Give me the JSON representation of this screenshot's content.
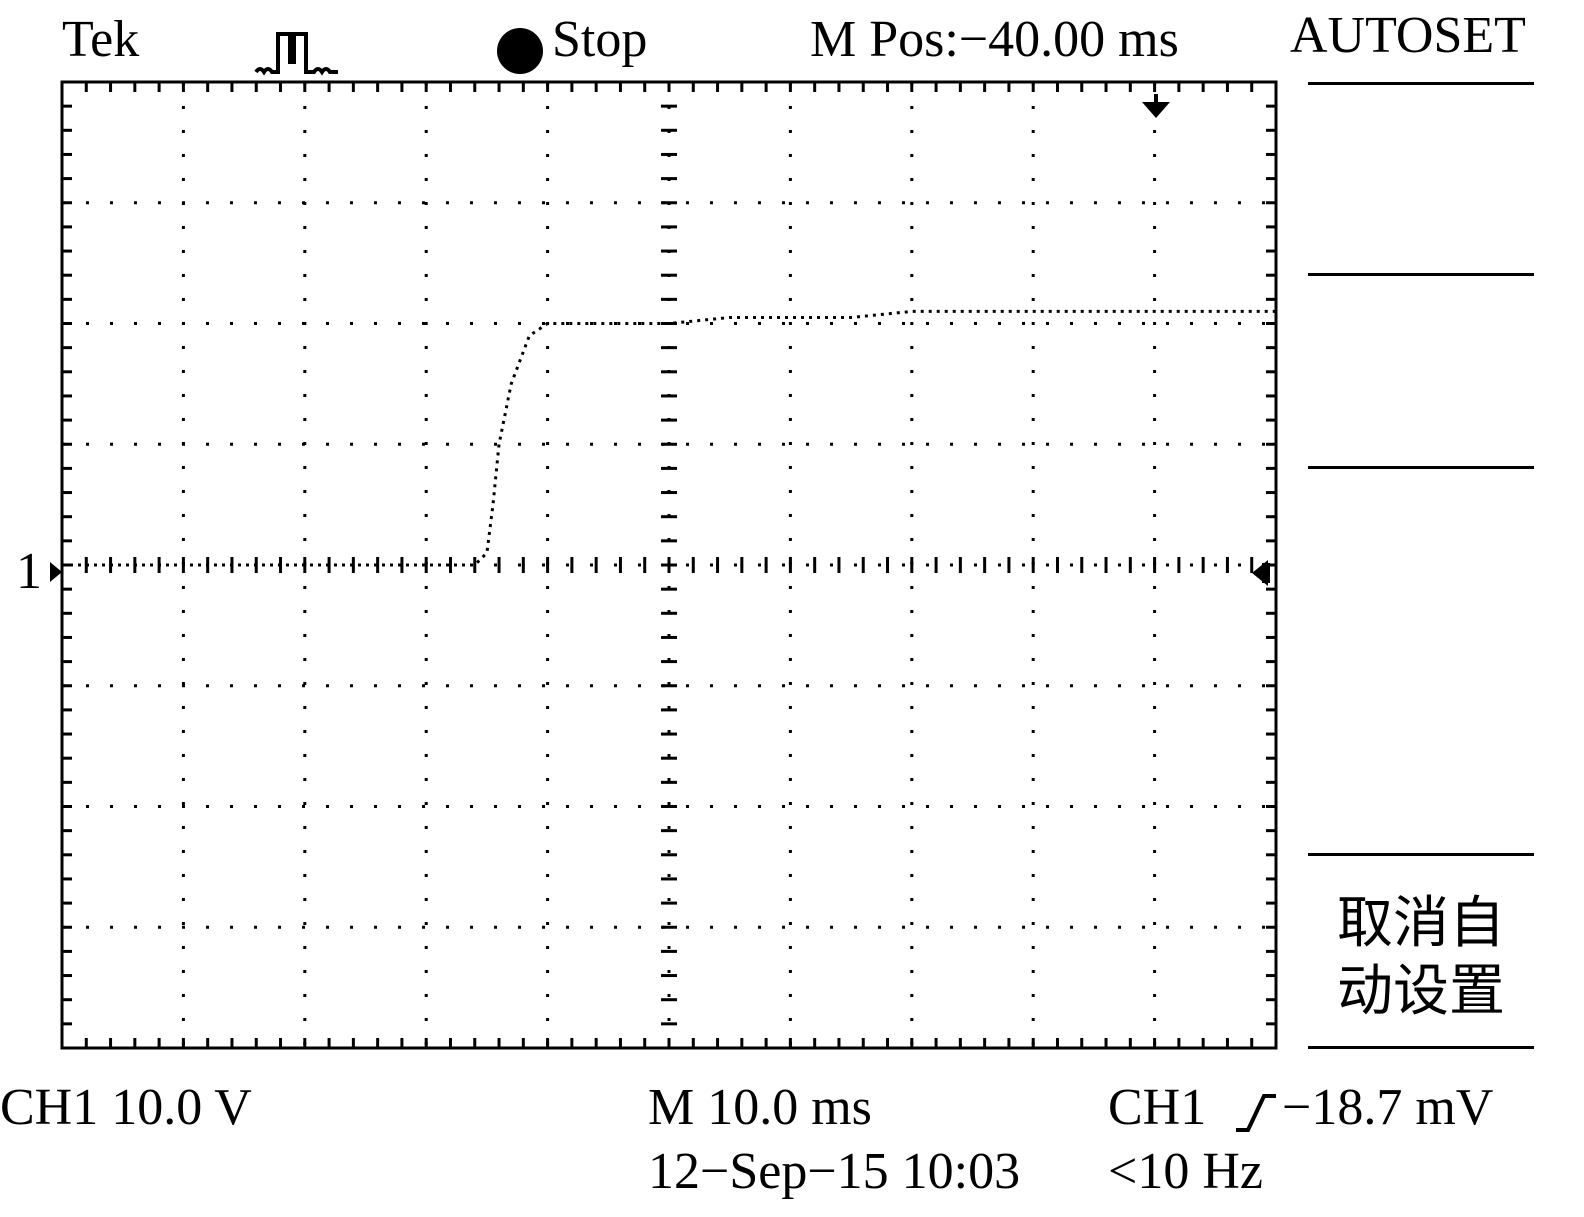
{
  "header": {
    "brand": "Tek",
    "acquire_icon": "acquire-pulse-icon",
    "run_state": "Stop",
    "horizontal_position": "M Pos:−40.00 ms"
  },
  "side_menu": {
    "title": "AUTOSET",
    "cancel_line1": "取消自",
    "cancel_line2": "动设置"
  },
  "channel_marker": "1",
  "footer": {
    "ch1_scale": "CH1 10.0 V",
    "timebase": "M 10.0 ms",
    "datetime": "12−Sep−15 10:03",
    "trigger_source": "CH1",
    "trigger_slope_icon": "rising-edge-icon",
    "trigger_level": "−18.7 mV",
    "trigger_frequency": "<10 Hz"
  },
  "colors": {
    "trace": "#000000",
    "background": "#ffffff"
  },
  "chart_data": {
    "type": "line",
    "title": "",
    "xlabel": "",
    "ylabel": "",
    "x_divisions": 10,
    "y_divisions": 8,
    "xlim": [
      0,
      10
    ],
    "ylim": [
      -4,
      4
    ],
    "grid": true,
    "series": [
      {
        "x": [
          0,
          3.4,
          3.5,
          3.55,
          3.6,
          3.7,
          3.85,
          4.0,
          4.5,
          5.0,
          5.5,
          6.0,
          6.5,
          7.0,
          7.5,
          8.0,
          8.5,
          9.0,
          9.5,
          10.0
        ],
        "y": [
          0,
          0,
          0.1,
          0.5,
          1.0,
          1.5,
          1.9,
          2.0,
          2.0,
          2.0,
          2.05,
          2.05,
          2.05,
          2.1,
          2.1,
          2.1,
          2.1,
          2.1,
          2.1,
          2.1
        ]
      }
    ]
  }
}
